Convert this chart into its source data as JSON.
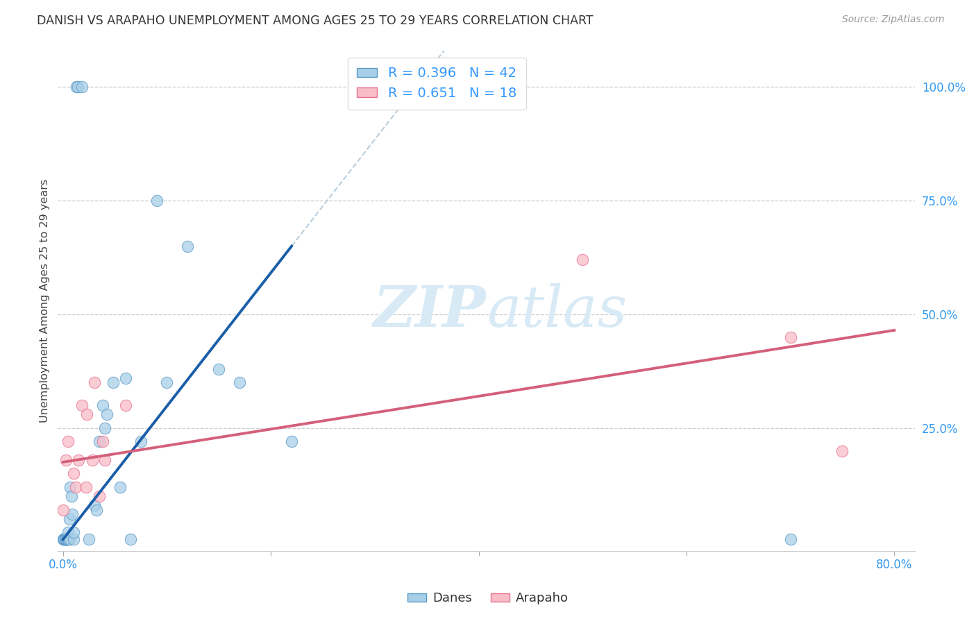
{
  "title": "DANISH VS ARAPAHO UNEMPLOYMENT AMONG AGES 25 TO 29 YEARS CORRELATION CHART",
  "source": "Source: ZipAtlas.com",
  "ylabel": "Unemployment Among Ages 25 to 29 years",
  "xlim": [
    -0.005,
    0.82
  ],
  "ylim": [
    -0.02,
    1.08
  ],
  "xticks": [
    0.0,
    0.2,
    0.4,
    0.6,
    0.8
  ],
  "xticklabels": [
    "0.0%",
    "",
    "",
    "",
    "80.0%"
  ],
  "yticks": [
    0.0,
    0.25,
    0.5,
    0.75,
    1.0
  ],
  "yticklabels": [
    "",
    "25.0%",
    "50.0%",
    "75.0%",
    "100.0%"
  ],
  "danes_color": "#a8cfe8",
  "danes_edge_color": "#5b9bc7",
  "arapaho_color": "#f9bdc8",
  "arapaho_edge_color": "#e87090",
  "danes_R": 0.396,
  "danes_N": 42,
  "arapaho_R": 0.651,
  "arapaho_N": 18,
  "grid_color": "#cccccc",
  "background_color": "#ffffff",
  "danes_line_color": "#1a5ea8",
  "arapaho_line_color": "#d4607a",
  "diagonal_color": "#b8cedd",
  "tick_color": "#3399ee",
  "title_color": "#333333",
  "danes_x": [
    0.0,
    0.001,
    0.001,
    0.002,
    0.002,
    0.003,
    0.003,
    0.003,
    0.004,
    0.004,
    0.005,
    0.005,
    0.005,
    0.006,
    0.006,
    0.007,
    0.008,
    0.009,
    0.01,
    0.01,
    0.013,
    0.014,
    0.018,
    0.025,
    0.03,
    0.032,
    0.035,
    0.038,
    0.04,
    0.042,
    0.048,
    0.055,
    0.06,
    0.065,
    0.075,
    0.09,
    0.1,
    0.12,
    0.15,
    0.17,
    0.22,
    0.7
  ],
  "danes_y": [
    0.005,
    0.005,
    0.005,
    0.005,
    0.005,
    0.005,
    0.005,
    0.005,
    0.005,
    0.005,
    0.005,
    0.01,
    0.02,
    0.005,
    0.05,
    0.12,
    0.1,
    0.06,
    0.005,
    0.02,
    1.0,
    1.0,
    1.0,
    0.005,
    0.08,
    0.07,
    0.22,
    0.3,
    0.25,
    0.28,
    0.35,
    0.12,
    0.36,
    0.005,
    0.22,
    0.75,
    0.35,
    0.65,
    0.38,
    0.35,
    0.22,
    0.005
  ],
  "arapaho_x": [
    0.0,
    0.003,
    0.005,
    0.01,
    0.012,
    0.015,
    0.018,
    0.022,
    0.023,
    0.028,
    0.03,
    0.035,
    0.038,
    0.04,
    0.06,
    0.5,
    0.7,
    0.75
  ],
  "arapaho_y": [
    0.07,
    0.18,
    0.22,
    0.15,
    0.12,
    0.18,
    0.3,
    0.12,
    0.28,
    0.18,
    0.35,
    0.1,
    0.22,
    0.18,
    0.3,
    0.62,
    0.45,
    0.2
  ],
  "danes_line_x": [
    0.0,
    0.22
  ],
  "danes_line_y": [
    0.005,
    0.65
  ],
  "arapaho_line_x": [
    0.0,
    0.8
  ],
  "arapaho_line_y": [
    0.175,
    0.465
  ]
}
